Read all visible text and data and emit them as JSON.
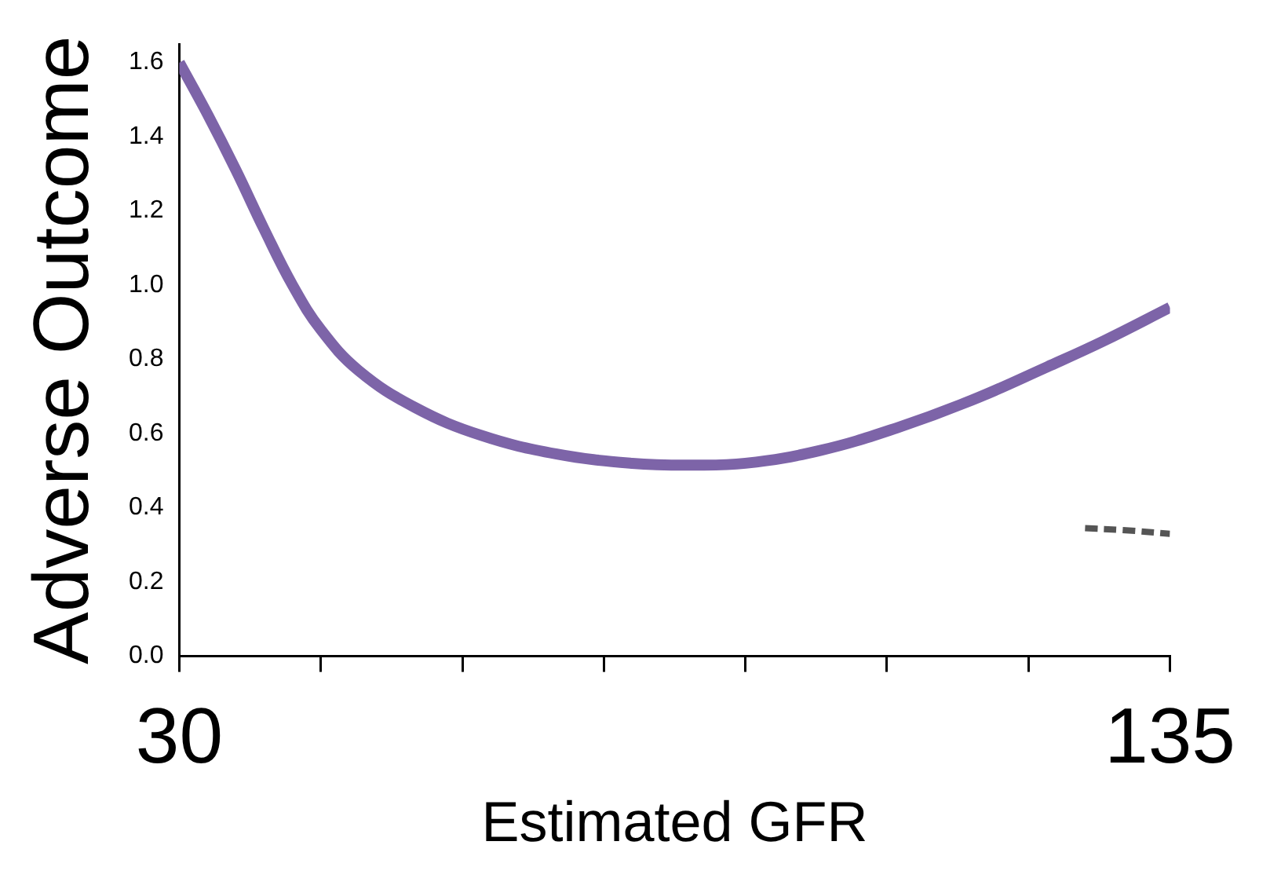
{
  "chart_data": {
    "type": "line",
    "xlabel": "Estimated GFR",
    "ylabel": "Adverse Outcome",
    "xlim": [
      30,
      135
    ],
    "xticks": [
      30,
      {
        "value": 45,
        "label": null
      },
      {
        "value": 60,
        "label": null
      },
      {
        "value": 75,
        "label": null
      },
      {
        "value": 90,
        "label": null
      },
      {
        "value": 105,
        "label": null
      },
      {
        "value": 120,
        "label": null
      },
      135
    ],
    "ylim": [
      0,
      1.65
    ],
    "yticks": [
      {
        "value": 0,
        "label": "0.0"
      },
      0.2,
      0.4,
      0.6,
      0.8,
      {
        "value": 1,
        "label": "1.0"
      },
      1.2,
      1.4,
      1.6
    ],
    "grid": false,
    "legend": false,
    "series": [
      {
        "color": "#7d64a8",
        "line_style": "solid",
        "x": [
          30,
          33,
          36,
          39,
          42,
          45,
          49,
          55,
          62,
          70,
          78,
          84,
          90,
          98,
          106,
          114,
          122,
          128,
          135
        ],
        "values": [
          1.6,
          1.46,
          1.31,
          1.15,
          1.0,
          0.88,
          0.77,
          0.67,
          0.595,
          0.545,
          0.52,
          0.515,
          0.52,
          0.555,
          0.615,
          0.69,
          0.78,
          0.85,
          0.94
        ]
      },
      {
        "color": "#555555",
        "line_style": "dashed",
        "x": [
          126,
          130,
          135
        ],
        "values": [
          0.345,
          0.34,
          0.33
        ]
      }
    ]
  }
}
